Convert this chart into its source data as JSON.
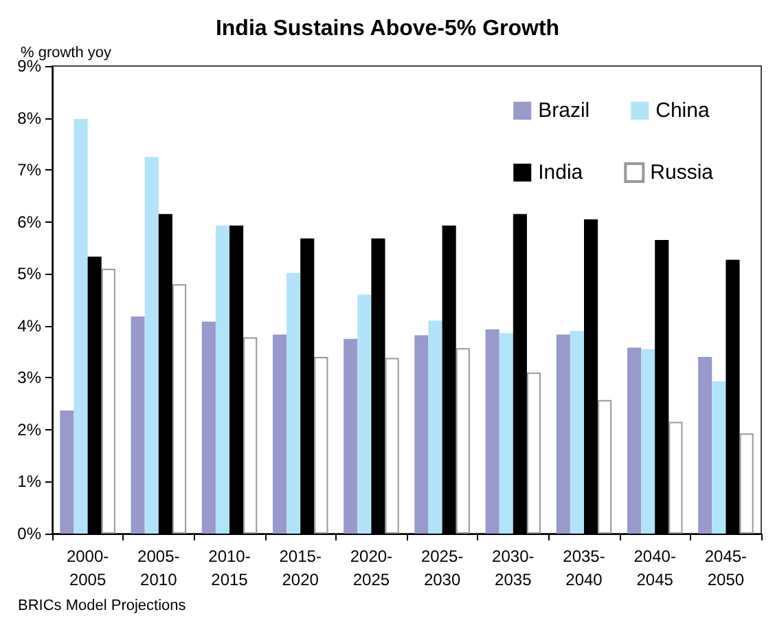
{
  "chart_data": {
    "type": "bar",
    "title": "India Sustains Above-5% Growth",
    "ylabel": "% growth yoy",
    "categories": [
      "2000-2005",
      "2005-2010",
      "2010-2015",
      "2015-2020",
      "2020-2025",
      "2025-2030",
      "2030-2035",
      "2035-2040",
      "2040-2045",
      "2045-2050"
    ],
    "series": [
      {
        "name": "Brazil",
        "color": "#9999cc",
        "values": [
          2.37,
          4.18,
          4.08,
          3.83,
          3.75,
          3.82,
          3.93,
          3.83,
          3.58,
          3.4
        ]
      },
      {
        "name": "China",
        "color": "#b3e3f8",
        "values": [
          7.98,
          7.25,
          5.93,
          5.02,
          4.6,
          4.1,
          3.86,
          3.9,
          3.55,
          2.93
        ]
      },
      {
        "name": "India",
        "color": "#000000",
        "values": [
          5.33,
          6.15,
          5.93,
          5.68,
          5.68,
          5.93,
          6.15,
          6.05,
          5.65,
          5.27
        ]
      },
      {
        "name": "Russia",
        "color": "#ffffff",
        "values": [
          5.1,
          4.8,
          3.78,
          3.4,
          3.38,
          3.57,
          3.1,
          2.57,
          2.15,
          1.93
        ]
      }
    ],
    "ylim": [
      0,
      9
    ],
    "yticks": [
      {
        "value": 0,
        "label": "0%"
      },
      {
        "value": 1,
        "label": "1%"
      },
      {
        "value": 2,
        "label": "2%"
      },
      {
        "value": 3,
        "label": "3%"
      },
      {
        "value": 4,
        "label": "4%"
      },
      {
        "value": 5,
        "label": "5%"
      },
      {
        "value": 6,
        "label": "6%"
      },
      {
        "value": 7,
        "label": "7%"
      },
      {
        "value": 8,
        "label": "8%"
      },
      {
        "value": 9,
        "label": "9%"
      }
    ],
    "grid": false,
    "legend": "top right",
    "annotations": [
      "BRICs Model Projections"
    ]
  }
}
